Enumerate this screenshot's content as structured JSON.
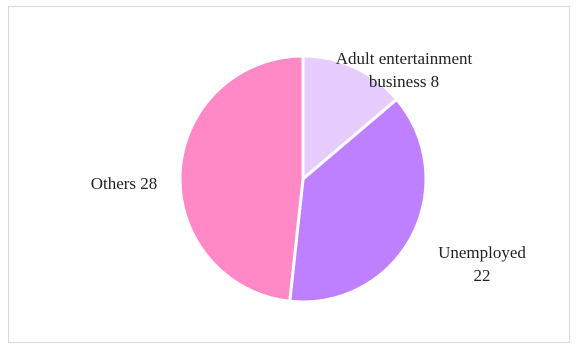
{
  "chart_data": {
    "type": "pie",
    "title": "",
    "slices": [
      {
        "label_lines": [
          "Adult entertainment",
          "business 8"
        ],
        "category": "Adult entertainment business",
        "value": 8,
        "color": "#e6ccff"
      },
      {
        "label_lines": [
          "Unemployed",
          "22"
        ],
        "category": "Unemployed",
        "value": 22,
        "color": "#bf80ff"
      },
      {
        "label_lines": [
          "Others 28"
        ],
        "category": "Others",
        "value": 28,
        "color": "#ff88c7"
      }
    ],
    "start_angle_deg": 0,
    "direction": "clockwise",
    "slice_border_color": "#ffffff",
    "legend": "none"
  }
}
